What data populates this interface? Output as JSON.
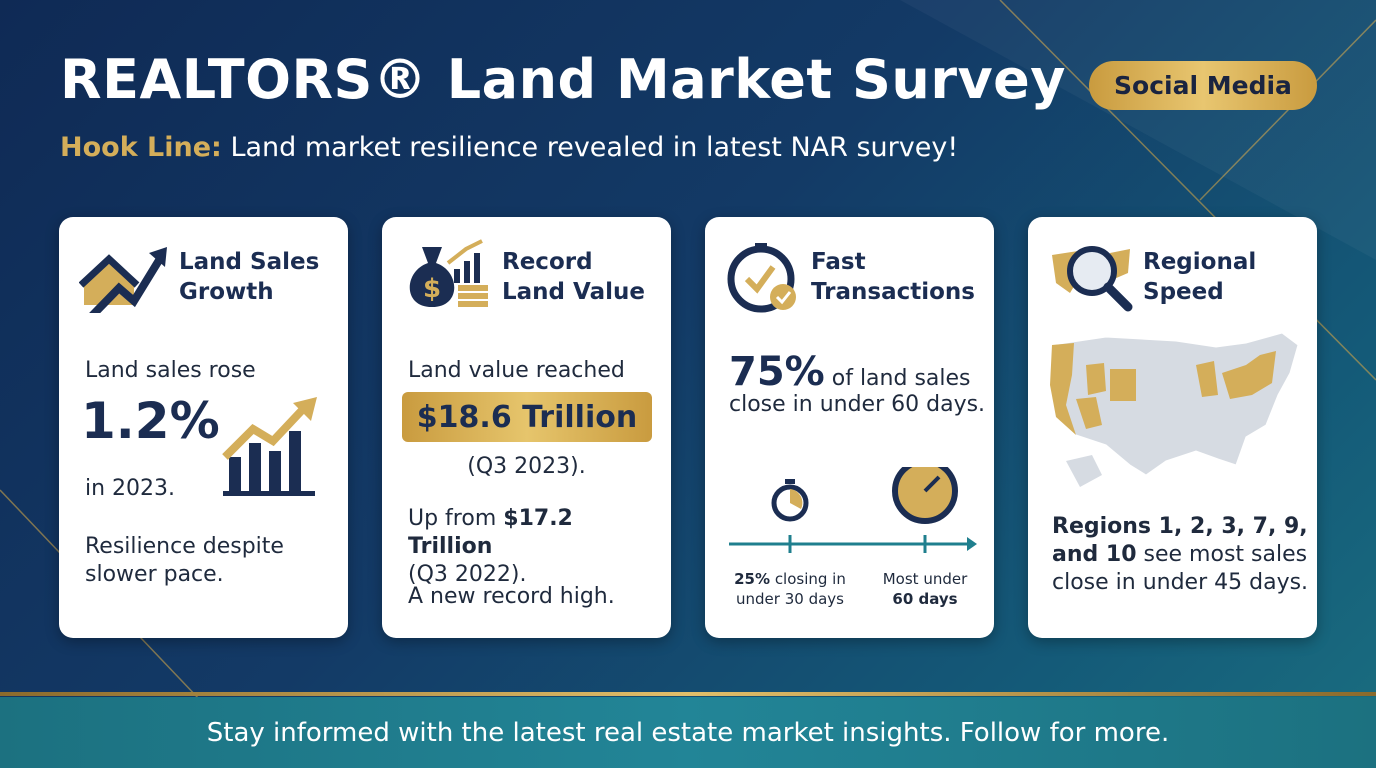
{
  "header": {
    "title": "REALTORS® Land Market Survey",
    "hook_label": "Hook Line:",
    "hook_text": "Land market resilience revealed in latest NAR survey!",
    "badge": "Social Media"
  },
  "cards": [
    {
      "title": "Land Sales Growth",
      "lead": "Land sales rose",
      "stat": "1.2%",
      "stat_tail": "in 2023.",
      "note": "Resilience despite slower pace."
    },
    {
      "title": "Record Land Value",
      "lead": "Land value reached",
      "stat": "$18.6 Trillion",
      "stat_tail": "(Q3 2023).",
      "prior_lead": "Up from",
      "prior_value": "$17.2 Trillion",
      "prior_tail": "(Q3 2022).",
      "note": "A new record high."
    },
    {
      "title": "Fast Transactions",
      "stat": "75%",
      "stat_tail": "of land sales",
      "stat_line2": "close in under 60 days.",
      "timeline": [
        {
          "bold": "25%",
          "text": "closing in under 30 days"
        },
        {
          "text": "Most under",
          "bold": "60 days"
        }
      ]
    },
    {
      "title": "Regional Speed",
      "regions_bold": "Regions 1, 2, 3, 7, 9, and 10",
      "regions_text": "see most sales close in under 45 days."
    }
  ],
  "footer": "Stay informed with the latest real estate market insights. Follow for more."
}
